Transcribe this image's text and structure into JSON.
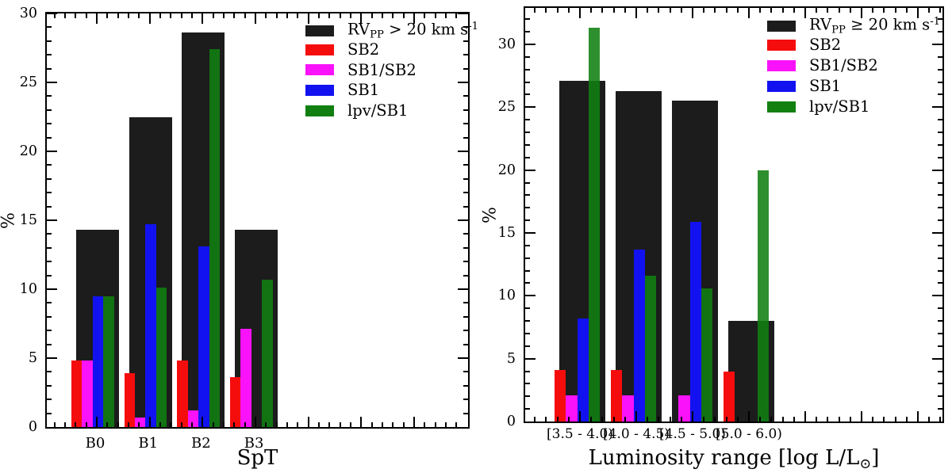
{
  "figure": {
    "background": "#ffffff",
    "axis_color": "#000000"
  },
  "colors": {
    "rvpp": "#1c1c1c",
    "sb2": "#f50d0d",
    "sb1sb2": "#fa12fa",
    "sb1": "#1212f0",
    "lpvsb1": "#118011"
  },
  "chart_data": [
    {
      "id": "spt",
      "type": "bar",
      "title": "",
      "xlabel": "SpT",
      "ylabel": "%",
      "ylim": [
        0,
        30
      ],
      "yticks": [
        0,
        5,
        10,
        15,
        20,
        25,
        30
      ],
      "y_minor_step": 1,
      "grid": false,
      "legend_position": "upper right",
      "legend_frame": false,
      "categories": [
        "B0",
        "B1",
        "B2",
        "B3"
      ],
      "series": [
        {
          "key": "rvpp",
          "label": "RV_{PP} > 20 km s^{-1}",
          "color": "#1c1c1c",
          "style": "wide",
          "values": [
            14.3,
            22.5,
            28.6,
            14.3
          ]
        },
        {
          "key": "sb2",
          "label": "SB2",
          "color": "#f50d0d",
          "style": "narrow",
          "values": [
            4.8,
            3.9,
            4.8,
            3.6
          ]
        },
        {
          "key": "sb1sb2",
          "label": "SB1/SB2",
          "color": "#fa12fa",
          "style": "narrow",
          "values": [
            4.8,
            0.7,
            1.2,
            7.1
          ]
        },
        {
          "key": "sb1",
          "label": "SB1",
          "color": "#1212f0",
          "style": "narrow",
          "values": [
            9.5,
            14.7,
            13.1,
            0
          ]
        },
        {
          "key": "lpvsb1",
          "label": "lpv/SB1",
          "color": "#118011",
          "style": "narrow",
          "opacity": 0.88,
          "values": [
            9.5,
            10.1,
            27.4,
            10.7
          ]
        }
      ]
    },
    {
      "id": "luminosity",
      "type": "bar",
      "title": "",
      "xlabel": "Luminosity range [log L/L_{⊙}]",
      "ylabel": "%",
      "ylim": [
        0,
        32.9
      ],
      "yticks": [
        0,
        5,
        10,
        15,
        20,
        25,
        30
      ],
      "y_minor_step": 1,
      "grid": false,
      "legend_position": "upper right",
      "legend_frame": false,
      "categories": [
        "[3.5 - 4.0)",
        "[4.0 - 4.5)",
        "[4.5 - 5.0)",
        "[5.0 - 6.0)"
      ],
      "series": [
        {
          "key": "rvpp",
          "label": "RV_{PP} ≥ 20 km s^{-1}",
          "color": "#1c1c1c",
          "style": "wide",
          "values": [
            27.1,
            26.3,
            25.5,
            8.0
          ]
        },
        {
          "key": "sb2",
          "label": "SB2",
          "color": "#f50d0d",
          "style": "narrow",
          "values": [
            4.1,
            4.1,
            0,
            4.0
          ]
        },
        {
          "key": "sb1sb2",
          "label": "SB1/SB2",
          "color": "#fa12fa",
          "style": "narrow",
          "values": [
            2.1,
            2.1,
            2.1,
            0
          ]
        },
        {
          "key": "sb1",
          "label": "SB1",
          "color": "#1212f0",
          "style": "narrow",
          "values": [
            8.2,
            13.7,
            15.9,
            0
          ]
        },
        {
          "key": "lpvsb1",
          "label": "lpv/SB1",
          "color": "#118011",
          "style": "narrow",
          "opacity": 0.88,
          "values": [
            31.3,
            11.6,
            10.6,
            20.0
          ]
        }
      ]
    }
  ]
}
